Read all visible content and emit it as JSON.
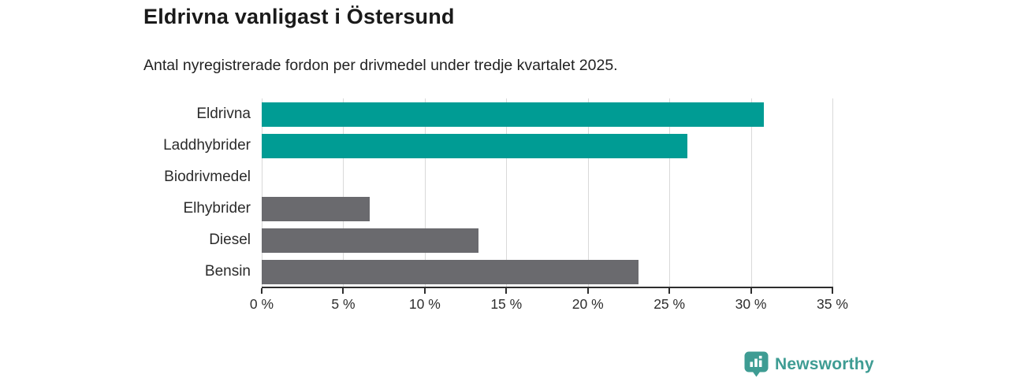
{
  "title": "Eldrivna vanligast i Östersund",
  "subtitle": "Antal nyregistrerade fordon per drivmedel under tredje kvartalet 2025.",
  "chart_data": {
    "type": "bar",
    "orientation": "horizontal",
    "title": "Eldrivna vanligast i Östersund",
    "subtitle": "Antal nyregistrerade fordon per drivmedel under tredje kvartalet 2025.",
    "categories": [
      "Eldrivna",
      "Laddhybrider",
      "Biodrivmedel",
      "Elhybrider",
      "Diesel",
      "Bensin"
    ],
    "values": [
      30.8,
      26.1,
      0,
      6.6,
      13.3,
      23.1
    ],
    "unit": "%",
    "xlabel": "",
    "ylabel": "",
    "xlim": [
      0,
      35
    ],
    "tick_step": 5,
    "tick_labels": [
      "0 %",
      "5 %",
      "10 %",
      "15 %",
      "20 %",
      "25 %",
      "30 %",
      "35 %"
    ],
    "grid": true,
    "legend": "none",
    "bar_colors": [
      "#009C94",
      "#009C94",
      "#009C94",
      "#6A6A6E",
      "#6A6A6E",
      "#6A6A6E"
    ]
  },
  "colors": {
    "bg": "#FFFFFF",
    "teal": "#009C94",
    "gray": "#6A6A6E",
    "grid": "#D9D9D9",
    "axis": "#2E2E2E",
    "title_text": "#1A1A1A",
    "body_text": "#222222",
    "logo": "#3E9C93"
  },
  "footer": {
    "brand": "Newsworthy",
    "logo_icon": "bar-chart-pin-icon"
  }
}
